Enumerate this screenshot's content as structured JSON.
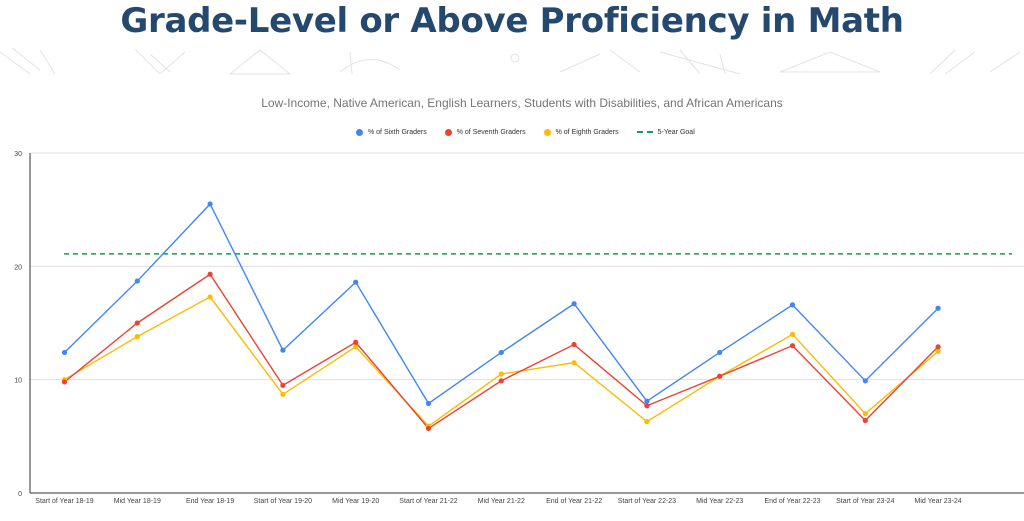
{
  "header": {
    "title": "Grade-Level or Above Proficiency in Math"
  },
  "chart_data": {
    "type": "line",
    "title": "",
    "subtitle": "Low-Income, Native American, English Learners, Students with Disabilities, and African Americans",
    "categories": [
      "Start of Year 18-19",
      "Mid Year 18-19",
      "End Year 18-19",
      "Start of Year 19-20",
      "Mid Year 19-20",
      "Start of Year 21-22",
      "Mid Year 21-22",
      "End of Year 21-22",
      "Start of Year 22-23",
      "Mid Year 22-23",
      "End of Year 22-23",
      "Start of Year 23-24",
      "Mid Year 23-24"
    ],
    "series": [
      {
        "name": "% of Sixth Graders",
        "color": "#4285f4",
        "values": [
          12.4,
          18.7,
          25.5,
          12.6,
          18.6,
          7.9,
          12.4,
          16.7,
          8.1,
          12.4,
          16.6,
          9.9,
          16.3
        ]
      },
      {
        "name": "% of Seventh Graders",
        "color": "#ea4335",
        "values": [
          9.8,
          15.0,
          19.3,
          9.5,
          13.3,
          5.7,
          9.9,
          13.1,
          7.7,
          10.3,
          13.0,
          6.4,
          12.9
        ]
      },
      {
        "name": "% of Eighth Graders",
        "color": "#fbbc04",
        "values": [
          10.0,
          13.8,
          17.3,
          8.7,
          12.9,
          5.9,
          10.5,
          11.5,
          6.3,
          10.3,
          14.0,
          7.0,
          12.5
        ]
      }
    ],
    "goal": {
      "name": "5-Year Goal",
      "value": 21.1,
      "color": "#0f9d58"
    },
    "ylim": [
      0,
      30
    ],
    "yticks": [
      0,
      10,
      20,
      30
    ],
    "xlabel": "",
    "ylabel": "",
    "grid": true,
    "legend_position": "top"
  }
}
